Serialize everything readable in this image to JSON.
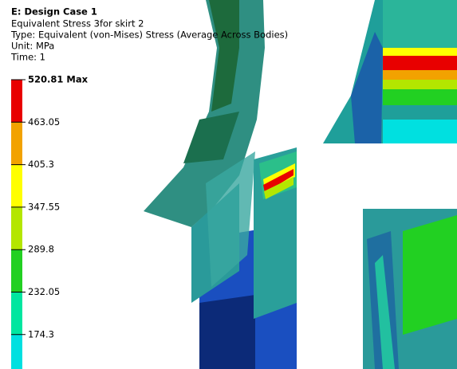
{
  "header": {
    "title": "E: Design Case 1",
    "lines": [
      "Equivalent Stress 3for skirt 2",
      "Type: Equivalent (von-Mises) Stress (Average Across Bodies)",
      "Unit: MPa",
      "Time: 1"
    ]
  },
  "legend": {
    "labels": [
      "520.81 Max",
      "463.05",
      "405.3",
      "347.55",
      "289.8",
      "232.05",
      "174.3"
    ],
    "colors": [
      "#e80000",
      "#f2a200",
      "#ffff00",
      "#b4e600",
      "#22d022",
      "#00e6a0",
      "#00e0e0"
    ]
  }
}
